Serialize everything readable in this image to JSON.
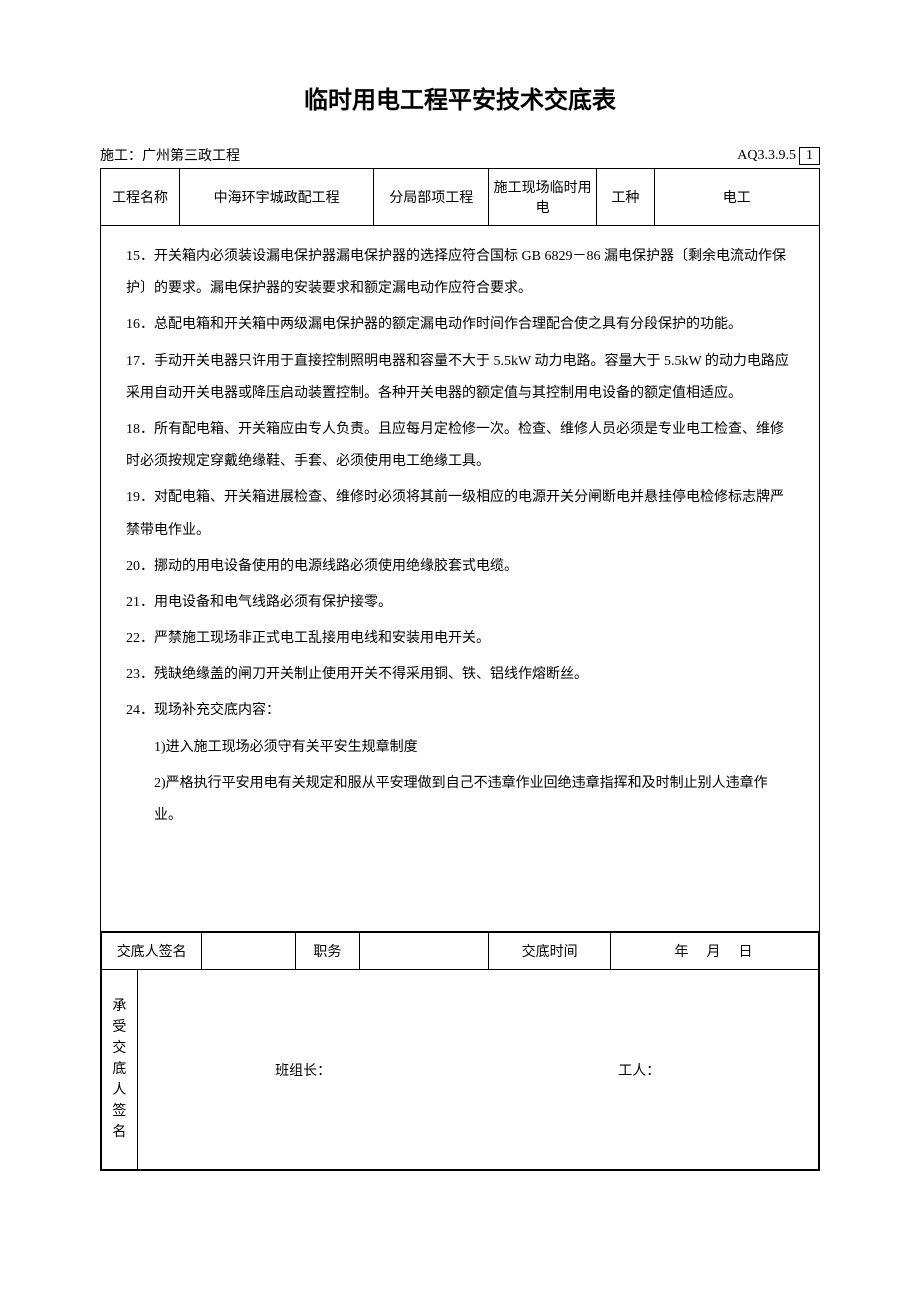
{
  "title": "临时用电工程平安技术交底表",
  "header": {
    "constructor_label": "施工：",
    "constructor_value": "广州第三政工程",
    "code_prefix": "AQ3.3.9.5",
    "code_number": "1"
  },
  "info_row": {
    "project_name_label": "工程名称",
    "project_name_value": "中海环宇城政配工程",
    "sub_project_label": "分局部项工程",
    "sub_project_value": "施工现场临时用电",
    "work_type_label": "工种",
    "work_type_value": "电工"
  },
  "content": {
    "item15": "15．开关箱内必须装设漏电保护器漏电保护器的选择应符合国标 GB 6829－86 漏电保护器〔剩余电流动作保护〕的要求。漏电保护器的安装要求和额定漏电动作应符合要求。",
    "item16": "16．总配电箱和开关箱中两级漏电保护器的额定漏电动作时间作合理配合使之具有分段保护的功能。",
    "item17": "17．手动开关电器只许用于直接控制照明电器和容量不大于 5.5kW 动力电路。容量大于 5.5kW 的动力电路应采用自动开关电器或降压启动装置控制。各种开关电器的额定值与其控制用电设备的额定值相适应。",
    "item18": "18．所有配电箱、开关箱应由专人负责。且应每月定检修一次。检查、维修人员必须是专业电工检查、维修时必须按规定穿戴绝缘鞋、手套、必须使用电工绝缘工具。",
    "item19": "19．对配电箱、开关箱进展检查、维修时必须将其前一级相应的电源开关分闸断电并悬挂停电检修标志牌严禁带电作业。",
    "item20": "20．挪动的用电设备使用的电源线路必须使用绝缘胶套式电缆。",
    "item21": "21．用电设备和电气线路必须有保护接零。",
    "item22": "22．严禁施工现场非正式电工乱接用电线和安装用电开关。",
    "item23": "23．残缺绝缘盖的闸刀开关制止使用开关不得采用铜、铁、铝线作熔断丝。",
    "item24": "24．现场补充交底内容：",
    "sub1": "1)进入施工现场必须守有关平安生规章制度",
    "sub2": "2)严格执行平安用电有关规定和服从平安理做到自己不违章作业回绝违章指挥和及时制止别人违章作业。"
  },
  "footer": {
    "signer_label": "交底人签名",
    "signer_value": "",
    "position_label": "职务",
    "position_value": "",
    "time_label": "交底时间",
    "date_format": "年　月　日",
    "receiver_label": "承受交底人签名",
    "team_leader": "班组长：",
    "worker": "工人："
  },
  "styling": {
    "background_color": "#ffffff",
    "text_color": "#000000",
    "border_color": "#000000",
    "title_fontsize": 24,
    "body_fontsize": 14,
    "line_height": 2.3
  }
}
